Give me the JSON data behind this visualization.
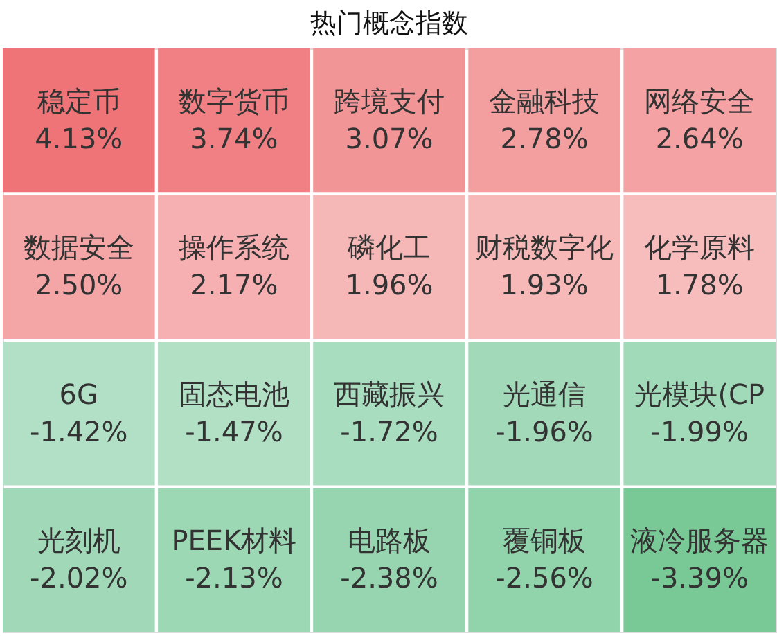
{
  "chart_data": {
    "type": "heatmap",
    "title": "热门概念指数",
    "categories": [
      null,
      null,
      null,
      null,
      null
    ],
    "y_categories": [
      null,
      null,
      null,
      null
    ],
    "cells": [
      [
        4.13,
        3.74,
        3.07,
        2.78,
        2.64
      ],
      [
        2.5,
        2.17,
        1.96,
        1.93,
        1.78
      ],
      [
        -1.42,
        -1.47,
        -1.72,
        -1.96,
        -1.99
      ],
      [
        -2.02,
        -2.13,
        -2.38,
        -2.56,
        -3.39
      ]
    ],
    "cell_labels": [
      [
        "4.13%",
        "3.74%",
        "3.07%",
        "2.78%",
        "2.64%"
      ],
      [
        "2.50%",
        "2.17%",
        "1.96%",
        "1.93%",
        "1.78%"
      ],
      [
        "-1.42%",
        "-1.47%",
        "-1.72%",
        "-1.96%",
        "-1.99%"
      ],
      [
        "-2.02%",
        "-2.13%",
        "-2.38%",
        "-2.56%",
        "-3.39%"
      ]
    ],
    "annotations": [
      "稳定币",
      "数字货币",
      "跨境支付",
      "金融科技",
      "网络安全",
      "数据安全",
      "操作系统",
      "磷化工",
      "财税数字化",
      "化学原料",
      "6G",
      "固态电池",
      "西藏振兴",
      "光通信",
      "光模块(CP",
      "光刻机",
      "PEEK材料",
      "电路板",
      "覆铜板",
      "液冷服务器"
    ],
    "colors": [
      "#79c997",
      "#dbf1e8",
      "#fef3f0",
      "#ee7478"
    ]
  }
}
